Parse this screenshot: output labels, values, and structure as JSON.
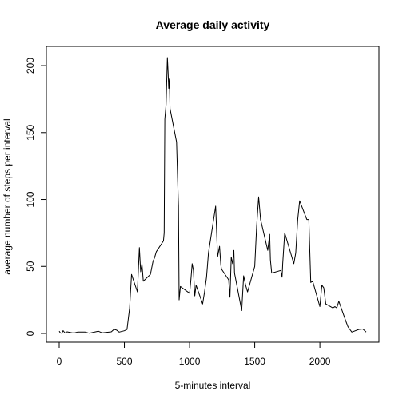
{
  "chart_data": {
    "type": "line",
    "title": "Average daily activity",
    "xlabel": "5-minutes interval",
    "ylabel": "average number of steps per interval",
    "xlim": [
      0,
      2355
    ],
    "ylim": [
      0,
      206
    ],
    "xticks": [
      0,
      500,
      1000,
      1500,
      2000
    ],
    "yticks": [
      0,
      50,
      100,
      150,
      200
    ],
    "grid": false,
    "line_color": "#000000",
    "series": [
      {
        "x": [
          0,
          10,
          20,
          30,
          45,
          60,
          100,
          120,
          140,
          200,
          230,
          300,
          330,
          400,
          420,
          440,
          460,
          500,
          520,
          540,
          555,
          600,
          615,
          625,
          635,
          645,
          700,
          720,
          730,
          745,
          800,
          805,
          810,
          820,
          830,
          835,
          840,
          845,
          850,
          900,
          910,
          915,
          920,
          930,
          1000,
          1010,
          1020,
          1030,
          1040,
          1050,
          1100,
          1115,
          1130,
          1145,
          1200,
          1205,
          1215,
          1230,
          1240,
          1245,
          1300,
          1310,
          1320,
          1330,
          1340,
          1345,
          1400,
          1415,
          1430,
          1445,
          1500,
          1515,
          1530,
          1545,
          1600,
          1615,
          1620,
          1630,
          1700,
          1710,
          1715,
          1730,
          1800,
          1815,
          1830,
          1845,
          1900,
          1915,
          1930,
          1945,
          2000,
          2015,
          2030,
          2045,
          2100,
          2115,
          2130,
          2145,
          2200,
          2215,
          2230,
          2245,
          2300,
          2330,
          2355
        ],
        "y": [
          1.7,
          0.3,
          0.1,
          2.1,
          0.3,
          1.2,
          0.5,
          0.5,
          1.0,
          1.0,
          0.2,
          1.7,
          0.4,
          1.2,
          3.0,
          2.5,
          1.0,
          2.0,
          2.9,
          19.0,
          44.0,
          31.0,
          64.0,
          46.0,
          52.0,
          39.0,
          44.0,
          54.0,
          56.0,
          61.0,
          69.0,
          75.0,
          160.0,
          171.0,
          206.0,
          195.0,
          183.0,
          190.0,
          168.0,
          143.0,
          110.0,
          95.0,
          25.0,
          35.0,
          30.0,
          40.0,
          52.0,
          47.0,
          28.0,
          36.0,
          22.0,
          31.0,
          42.0,
          60.0,
          95.0,
          83.0,
          57.0,
          65.0,
          51.0,
          48.0,
          40.0,
          27.0,
          57.0,
          52.0,
          62.0,
          45.0,
          17.0,
          43.0,
          36.0,
          31.0,
          50.0,
          80.0,
          102.0,
          85.0,
          62.0,
          74.0,
          55.0,
          45.0,
          47.0,
          42.0,
          52.0,
          75.0,
          52.0,
          60.0,
          85.0,
          99.0,
          85.0,
          85.0,
          38.0,
          39.0,
          20.0,
          36.0,
          34.0,
          22.0,
          19.0,
          20.0,
          19.0,
          24.0,
          9.0,
          5.0,
          3.0,
          1.0,
          3.0,
          3.3,
          1.1
        ]
      }
    ]
  }
}
